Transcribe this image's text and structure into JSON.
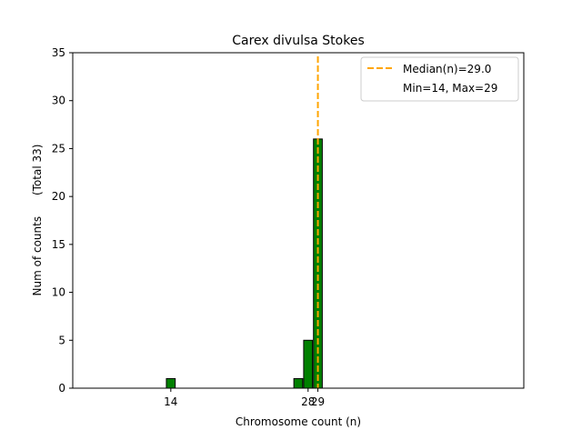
{
  "chart_data": {
    "type": "bar",
    "title": "Carex divulsa Stokes",
    "xlabel": "Chromosome count (n)",
    "ylabel": "Num of counts      (Total 33)",
    "xlim": [
      4,
      50
    ],
    "ylim": [
      0,
      35
    ],
    "yticks": [
      0,
      5,
      10,
      15,
      20,
      25,
      30,
      35
    ],
    "xticks": [
      14,
      28,
      29
    ],
    "bins": [
      {
        "x": 14,
        "count": 1
      },
      {
        "x": 27,
        "count": 1
      },
      {
        "x": 28,
        "count": 5
      },
      {
        "x": 29,
        "count": 26
      }
    ],
    "median": 29.0,
    "legend": {
      "position": "top-right",
      "median_label": "Median(n)=29.0",
      "range_label": "Min=14, Max=29"
    },
    "colors": {
      "bar": "#008000",
      "bar_edge": "#000000",
      "median_line": "#FFA500"
    }
  }
}
